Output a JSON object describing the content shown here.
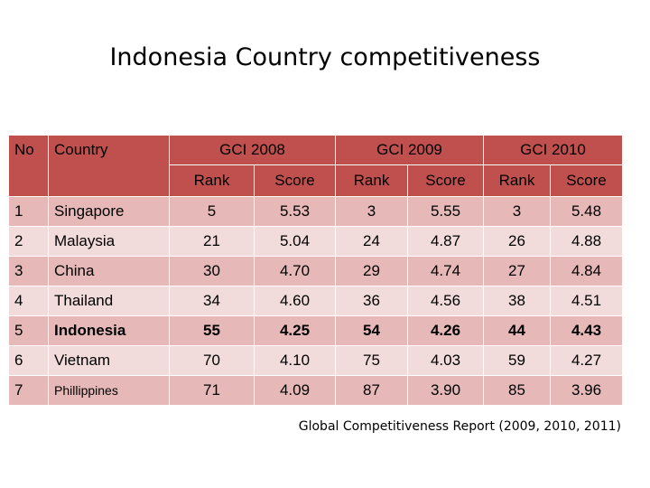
{
  "title": "Indonesia Country competitiveness",
  "header": {
    "no": "No",
    "country": "Country",
    "gci2008": "GCI 2008",
    "gci2009": "GCI 2009",
    "gci2010": "GCI 2010",
    "rank": "Rank",
    "score": "Score"
  },
  "rows": [
    {
      "no": "1",
      "country": "Singapore",
      "r08": "5",
      "s08": "5.53",
      "r09": "3",
      "s09": "5.55",
      "r10": "3",
      "s10": "5.48"
    },
    {
      "no": "2",
      "country": "Malaysia",
      "r08": "21",
      "s08": "5.04",
      "r09": "24",
      "s09": "4.87",
      "r10": "26",
      "s10": "4.88"
    },
    {
      "no": "3",
      "country": "China",
      "r08": "30",
      "s08": "4.70",
      "r09": "29",
      "s09": "4.74",
      "r10": "27",
      "s10": "4.84"
    },
    {
      "no": "4",
      "country": "Thailand",
      "r08": "34",
      "s08": "4.60",
      "r09": "36",
      "s09": "4.56",
      "r10": "38",
      "s10": "4.51"
    },
    {
      "no": "5",
      "country": "Indonesia",
      "r08": "55",
      "s08": "4.25",
      "r09": "54",
      "s09": "4.26",
      "r10": "44",
      "s10": "4.43"
    },
    {
      "no": "6",
      "country": "Vietnam",
      "r08": "70",
      "s08": "4.10",
      "r09": "75",
      "s09": "4.03",
      "r10": "59",
      "s10": "4.27"
    },
    {
      "no": "7",
      "country": "Phillippines",
      "r08": "71",
      "s08": "4.09",
      "r09": "87",
      "s09": "3.90",
      "r10": "85",
      "s10": "3.96"
    }
  ],
  "source": "Global Competitiveness Report (2009, 2010, 2011)",
  "colors": {
    "header": "#c0504d",
    "row_dark": "#e6b9b8",
    "row_light": "#f2dcdb"
  }
}
